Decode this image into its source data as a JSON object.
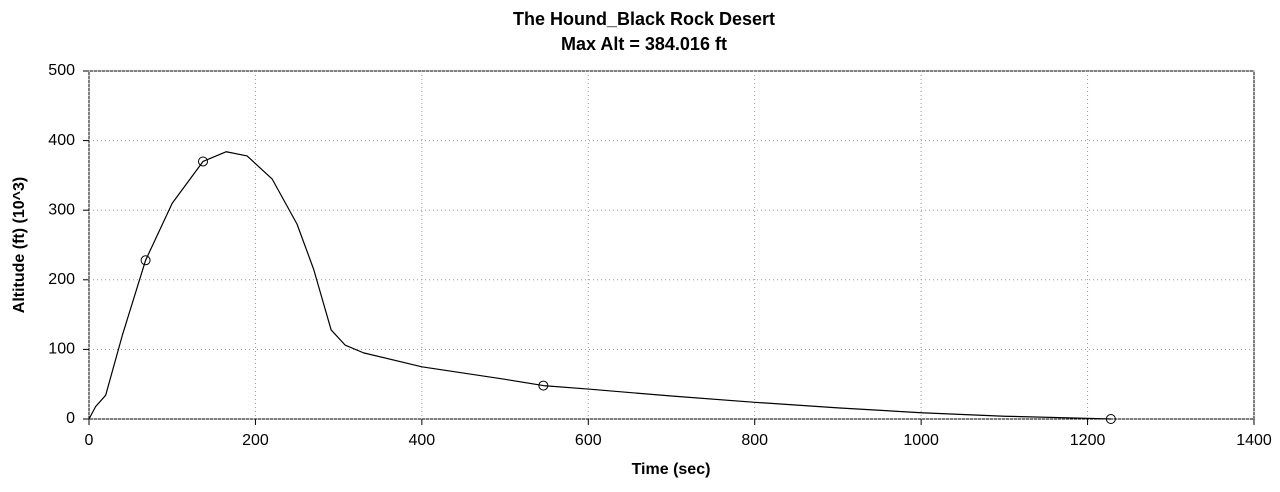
{
  "chart_data": {
    "type": "line",
    "title": "The Hound_Black Rock Desert",
    "subtitle": "Max Alt = 384.016 ft",
    "x_label": "Time (sec)",
    "y_label": "Altitude (ft) (10^3)",
    "xlim": [
      0,
      1400
    ],
    "xticks": [
      0,
      200,
      400,
      600,
      800,
      1000,
      1200,
      1400
    ],
    "ylim": [
      0,
      500
    ],
    "yticks": [
      0,
      100,
      200,
      300,
      400,
      500
    ],
    "grid": true,
    "series": [
      {
        "color": "#000000",
        "marker": "none",
        "x": [
          0,
          8,
          20,
          40,
          68,
          100,
          137,
          165,
          190,
          220,
          250,
          270,
          291,
          308,
          330,
          400,
          500,
          546,
          600,
          700,
          800,
          900,
          1000,
          1100,
          1200,
          1228
        ],
        "values": [
          0,
          18,
          34,
          120,
          228,
          310,
          370,
          384,
          378,
          345,
          280,
          215,
          128,
          106,
          95,
          75,
          57,
          48,
          43,
          33,
          24,
          16,
          9,
          4,
          1,
          0
        ]
      },
      {
        "color": "#000000",
        "marker": "circle",
        "x": [
          68,
          137,
          546,
          1228
        ],
        "values": [
          228,
          370,
          48,
          0
        ]
      }
    ]
  }
}
